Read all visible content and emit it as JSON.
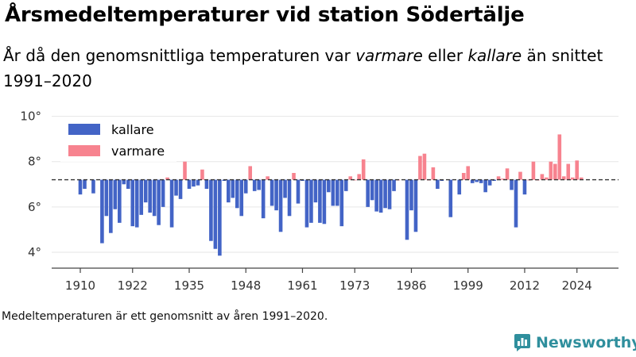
{
  "header": {
    "title": "Årsmedeltemperaturer vid station Södertälje",
    "subtitle_part1": "År då den genomsnittliga temperaturen var ",
    "subtitle_em1": "varmare",
    "subtitle_part2": " eller ",
    "subtitle_em2": "kallare",
    "subtitle_part3": " än snittet 1991–2020"
  },
  "footnote": "Medeltemperaturen är ett genomsnitt av åren 1991–2020.",
  "brand": {
    "name": "Newsworthy",
    "icon": "newsworthy-logo-icon",
    "color": "#2f8f9d"
  },
  "colors": {
    "colder": "#4364c6",
    "warmer": "#f7838f",
    "reference": "#333333"
  },
  "chart_data": {
    "type": "bar",
    "title": "Årsmedeltemperaturer vid station Södertälje",
    "xlabel": "",
    "ylabel": "",
    "baseline": 7.2,
    "ylim": [
      3.3,
      10.3
    ],
    "yticks": [
      4,
      6,
      8,
      10
    ],
    "ytick_labels": [
      "4°",
      "6°",
      "8°",
      "10°"
    ],
    "xticks": [
      1910,
      1922,
      1935,
      1948,
      1961,
      1973,
      1986,
      1999,
      2012,
      2024
    ],
    "xtick_labels": [
      "1910",
      "1922",
      "1935",
      "1948",
      "1961",
      "1973",
      "1986",
      "1999",
      "2012",
      "2024"
    ],
    "legend": {
      "position": "top-left",
      "entries": [
        {
          "label": "kallare",
          "color": "#4364c6"
        },
        {
          "label": "varmare",
          "color": "#f7838f"
        }
      ]
    },
    "reference_line": {
      "value": 7.2,
      "style": "dashed"
    },
    "grid": "horizontal",
    "x": [
      1910,
      1911,
      1913,
      1915,
      1916,
      1917,
      1918,
      1919,
      1920,
      1921,
      1922,
      1923,
      1924,
      1925,
      1926,
      1927,
      1928,
      1929,
      1930,
      1931,
      1932,
      1933,
      1934,
      1935,
      1936,
      1937,
      1938,
      1939,
      1940,
      1941,
      1942,
      1943,
      1944,
      1945,
      1946,
      1947,
      1948,
      1949,
      1950,
      1951,
      1952,
      1953,
      1954,
      1955,
      1956,
      1957,
      1958,
      1959,
      1960,
      1961,
      1962,
      1963,
      1964,
      1965,
      1966,
      1967,
      1968,
      1969,
      1970,
      1971,
      1972,
      1973,
      1974,
      1975,
      1976,
      1977,
      1978,
      1979,
      1980,
      1981,
      1982,
      1983,
      1985,
      1986,
      1987,
      1988,
      1989,
      1990,
      1991,
      1992,
      1993,
      1995,
      1997,
      1998,
      1999,
      2000,
      2001,
      2002,
      2003,
      2004,
      2005,
      2006,
      2007,
      2008,
      2009,
      2010,
      2011,
      2012,
      2013,
      2014,
      2015,
      2016,
      2017,
      2018,
      2019,
      2020,
      2021,
      2022,
      2023,
      2024,
      2025
    ],
    "values": [
      6.55,
      6.8,
      6.6,
      4.4,
      5.6,
      4.85,
      5.9,
      5.3,
      7.0,
      6.8,
      5.15,
      5.1,
      5.65,
      6.2,
      5.75,
      5.6,
      5.2,
      6.0,
      7.3,
      5.1,
      6.5,
      6.35,
      8.0,
      6.8,
      6.9,
      6.95,
      7.65,
      6.8,
      4.5,
      4.15,
      3.85,
      7.15,
      6.2,
      6.4,
      5.95,
      5.6,
      6.6,
      7.8,
      6.7,
      6.75,
      5.5,
      7.35,
      6.05,
      5.85,
      4.9,
      6.4,
      5.6,
      7.5,
      6.15,
      7.15,
      5.1,
      5.3,
      6.2,
      5.3,
      5.25,
      6.65,
      6.05,
      6.05,
      5.15,
      6.7,
      7.35,
      7.2,
      7.45,
      8.1,
      6.0,
      6.3,
      5.8,
      5.75,
      5.95,
      5.9,
      6.7,
      7.2,
      4.55,
      5.85,
      4.9,
      8.25,
      8.35,
      7.2,
      7.75,
      6.8,
      7.15,
      5.55,
      6.55,
      7.5,
      7.8,
      7.05,
      7.1,
      7.05,
      6.65,
      6.95,
      7.15,
      7.35,
      7.25,
      7.7,
      6.75,
      5.1,
      7.55,
      6.55,
      7.2,
      8.0,
      7.2,
      7.45,
      7.3,
      8.0,
      7.9,
      9.2,
      7.35,
      7.9,
      7.3,
      8.05,
      7.3
    ]
  }
}
